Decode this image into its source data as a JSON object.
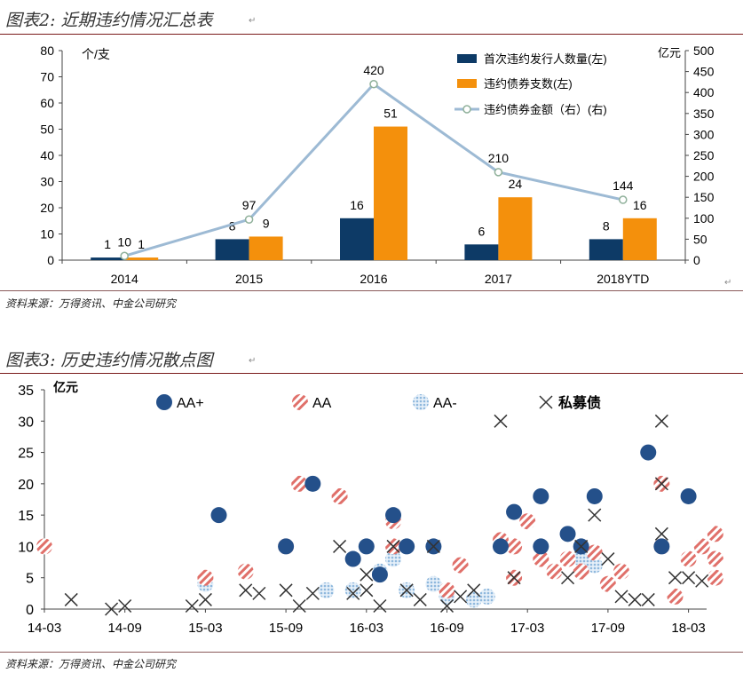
{
  "chart1": {
    "title": "图表2: 近期违约情况汇总表",
    "source": "资料来源：万得资讯、中金公司研究",
    "left_unit": "个/支",
    "right_unit": "亿元",
    "colors": {
      "issuers": "#0d3a66",
      "bonds": "#f4900c",
      "amount": "#9dbad4"
    },
    "chart_data": {
      "type": "bar",
      "categories": [
        "2014",
        "2015",
        "2016",
        "2017",
        "2018YTD"
      ],
      "ylim_left": [
        0,
        80
      ],
      "ylim_right": [
        0,
        500
      ],
      "yticks_left": [
        0,
        10,
        20,
        30,
        40,
        50,
        60,
        70,
        80
      ],
      "yticks_right": [
        0,
        50,
        100,
        150,
        200,
        250,
        300,
        350,
        400,
        450,
        500
      ],
      "series": [
        {
          "name": "首次违约发行人数量(左)",
          "type": "bar",
          "axis": "left",
          "values": [
            1,
            8,
            16,
            6,
            8
          ]
        },
        {
          "name": "违约债券支数(左)",
          "type": "bar",
          "axis": "left",
          "values": [
            1,
            9,
            51,
            24,
            16
          ]
        },
        {
          "name": "违约债券金额（右）(右)",
          "type": "line",
          "axis": "right",
          "values": [
            10,
            97,
            420,
            210,
            144
          ]
        }
      ],
      "legend": "top-right"
    }
  },
  "chart2": {
    "title": "图表3: 历史违约情况散点图",
    "source": "资料来源：万得资讯、中金公司研究",
    "y_unit": "亿元",
    "colors": {
      "AA+": "#24508a",
      "AA": "#e0706a",
      "AA-": "#c2daef",
      "private": "#333333"
    },
    "chart_data": {
      "type": "scatter",
      "x_tick_labels": [
        "14-03",
        "14-09",
        "15-03",
        "15-09",
        "16-03",
        "16-09",
        "17-03",
        "17-09",
        "18-03"
      ],
      "ylim": [
        0,
        35
      ],
      "yticks": [
        0,
        5,
        10,
        15,
        20,
        25,
        30,
        35
      ],
      "legend": "top",
      "series": [
        {
          "name": "AA+",
          "marker": "filled-circle",
          "points": [
            [
              "15-04",
              15
            ],
            [
              "15-09",
              10
            ],
            [
              "15-11",
              20
            ],
            [
              "16-02",
              8
            ],
            [
              "16-03",
              10
            ],
            [
              "16-05",
              15
            ],
            [
              "16-04",
              5.5
            ],
            [
              "16-06",
              10
            ],
            [
              "16-08",
              10
            ],
            [
              "17-01",
              10
            ],
            [
              "17-02",
              15.5
            ],
            [
              "17-04",
              18
            ],
            [
              "17-04",
              10
            ],
            [
              "17-06",
              12
            ],
            [
              "17-07",
              10
            ],
            [
              "17-08",
              18
            ],
            [
              "17-12",
              25
            ],
            [
              "18-01",
              10
            ],
            [
              "18-03",
              18
            ]
          ]
        },
        {
          "name": "AA",
          "marker": "hatched-circle",
          "points": [
            [
              "14-03",
              10
            ],
            [
              "15-03",
              5
            ],
            [
              "15-06",
              6
            ],
            [
              "15-10",
              20
            ],
            [
              "15-09",
              10
            ],
            [
              "16-01",
              18
            ],
            [
              "16-05",
              14
            ],
            [
              "16-05",
              10
            ],
            [
              "16-10",
              7
            ],
            [
              "16-09",
              3
            ],
            [
              "17-01",
              11
            ],
            [
              "17-02",
              10
            ],
            [
              "17-02",
              5
            ],
            [
              "17-03",
              14
            ],
            [
              "17-04",
              8
            ],
            [
              "17-05",
              6
            ],
            [
              "17-06",
              8
            ],
            [
              "17-07",
              6
            ],
            [
              "17-08",
              9
            ],
            [
              "17-09",
              4
            ],
            [
              "17-10",
              6
            ],
            [
              "18-01",
              20
            ],
            [
              "18-01",
              10
            ],
            [
              "18-02",
              2
            ],
            [
              "18-03",
              8
            ],
            [
              "18-04",
              10
            ],
            [
              "18-05",
              12
            ],
            [
              "18-05",
              8
            ],
            [
              "18-05",
              5
            ]
          ]
        },
        {
          "name": "AA-",
          "marker": "dotted-circle",
          "points": [
            [
              "15-03",
              4
            ],
            [
              "15-12",
              3
            ],
            [
              "16-02",
              3
            ],
            [
              "16-04",
              6
            ],
            [
              "16-05",
              8
            ],
            [
              "16-06",
              3
            ],
            [
              "16-08",
              4
            ],
            [
              "16-09",
              2
            ],
            [
              "16-11",
              1.5
            ],
            [
              "16-12",
              2
            ],
            [
              "17-07",
              8
            ],
            [
              "17-08",
              7
            ]
          ]
        },
        {
          "name": "私募债",
          "marker": "x",
          "points": [
            [
              "14-05",
              1.5
            ],
            [
              "14-08",
              0
            ],
            [
              "14-09",
              0.5
            ],
            [
              "15-02",
              0.5
            ],
            [
              "15-03",
              1.5
            ],
            [
              "15-06",
              3
            ],
            [
              "15-07",
              2.5
            ],
            [
              "15-09",
              3
            ],
            [
              "15-10",
              0.5
            ],
            [
              "15-11",
              2.5
            ],
            [
              "16-01",
              10
            ],
            [
              "16-02",
              2.5
            ],
            [
              "16-03",
              3
            ],
            [
              "16-03",
              5.5
            ],
            [
              "16-04",
              0.5
            ],
            [
              "16-05",
              10
            ],
            [
              "16-06",
              3
            ],
            [
              "16-07",
              1.5
            ],
            [
              "16-08",
              10
            ],
            [
              "16-09",
              0.5
            ],
            [
              "16-10",
              2
            ],
            [
              "16-11",
              3
            ],
            [
              "17-01",
              30
            ],
            [
              "17-02",
              5
            ],
            [
              "17-06",
              5
            ],
            [
              "17-07",
              10
            ],
            [
              "17-08",
              15
            ],
            [
              "17-09",
              8
            ],
            [
              "17-10",
              2
            ],
            [
              "17-11",
              1.5
            ],
            [
              "17-12",
              1.5
            ],
            [
              "18-01",
              30
            ],
            [
              "18-01",
              20
            ],
            [
              "18-01",
              12
            ],
            [
              "18-02",
              5
            ],
            [
              "18-03",
              5
            ],
            [
              "18-04",
              4.5
            ]
          ]
        }
      ]
    }
  }
}
